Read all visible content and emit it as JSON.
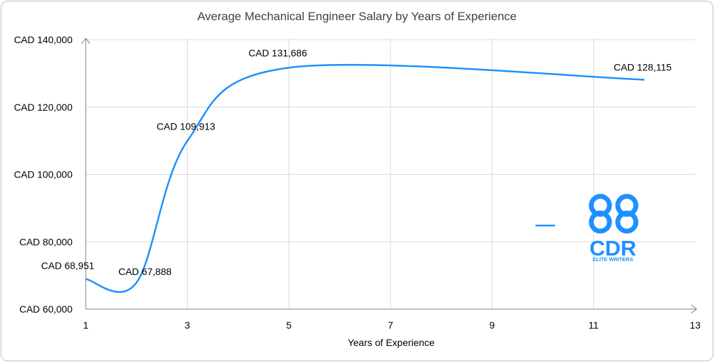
{
  "chart_data": {
    "type": "line",
    "title": "Average Mechanical Engineer Salary by Years of Experience",
    "xlabel": "Years of Experience",
    "ylabel": "",
    "xlim": [
      1,
      13
    ],
    "ylim": [
      60000,
      140000
    ],
    "x_ticks": [
      "1",
      "3",
      "5",
      "7",
      "9",
      "11",
      "13"
    ],
    "y_ticks": [
      "CAD 60,000",
      "CAD 80,000",
      "CAD 100,000",
      "CAD 120,000",
      "CAD 140,000"
    ],
    "series": [
      {
        "x": [
          1,
          2,
          3,
          5,
          12
        ],
        "values": [
          68951,
          67888,
          109913,
          131686,
          128115
        ],
        "color": "#1E90FF",
        "smooth": true
      }
    ],
    "data_labels": [
      "CAD 68,951",
      "CAD 67,888",
      "CAD 109,913",
      "CAD 131,686",
      "CAD 128,115"
    ],
    "grid": true,
    "legend": "right"
  },
  "logo": {
    "mark_text": "CDR",
    "tagline": "ELITE WRITERS",
    "color": "#1E90FF"
  }
}
